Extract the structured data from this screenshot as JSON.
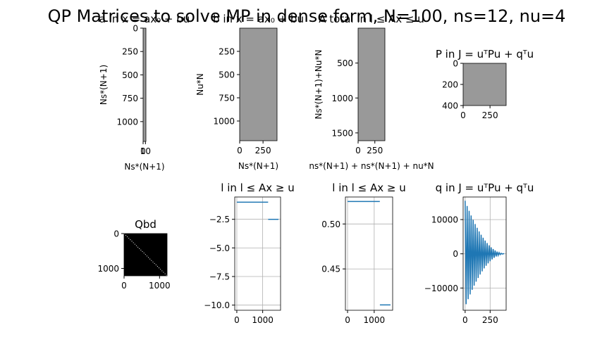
{
  "title": "QP Matrices to solve MP in dense form, N=100, ns=12, nu=4",
  "chart_data": [
    {
      "type": "image",
      "title": "a in x = ax₀ + bu",
      "xlabel": "Ns*(N+1)",
      "ylabel": "Ns*(N+1)",
      "color": "#999999",
      "xlim": [
        0,
        12
      ],
      "ylim": [
        1212,
        0
      ],
      "xticks": [
        0,
        10
      ],
      "yticks": [
        0,
        250,
        500,
        750,
        1000
      ]
    },
    {
      "type": "image",
      "title": "b in x = ax₀ + bu",
      "xlabel": "Ns*(N+1)",
      "ylabel": "Nu*N",
      "color": "#999999",
      "xlim": [
        0,
        400
      ],
      "ylim": [
        1212,
        0
      ],
      "xticks": [
        0,
        250
      ],
      "yticks": [
        250,
        500,
        750,
        1000
      ]
    },
    {
      "type": "image",
      "title": "A total in l ≤ Ax ≤ u",
      "xlabel": "ns*(N+1) + ns*(N+1) + nu*N",
      "ylabel": "Ns*(N+1)+Nu*N",
      "color": "#999999",
      "xlim": [
        0,
        400
      ],
      "ylim": [
        1612,
        0
      ],
      "xticks": [
        0,
        250
      ],
      "yticks": [
        500,
        1000,
        1500
      ]
    },
    {
      "type": "image",
      "title": "P in J = uᵀPu + qᵀu",
      "color": "#999999",
      "xlim": [
        0,
        400
      ],
      "ylim": [
        400,
        0
      ],
      "xticks": [
        0,
        250
      ],
      "yticks": [
        0,
        200,
        400
      ]
    },
    {
      "type": "image",
      "title": "Qbd",
      "color": "#000000",
      "diagonal_color": "#ffffff",
      "xlim": [
        0,
        1212
      ],
      "ylim": [
        1212,
        0
      ],
      "xticks": [
        0,
        1000
      ],
      "yticks": [
        0,
        1000
      ]
    },
    {
      "type": "line",
      "title": "l in  l ≤ Ax ≥ u",
      "color": "#1f77b4",
      "grid": true,
      "x": [
        0,
        1211,
        1212,
        1213,
        1611
      ],
      "values": [
        -1,
        -1,
        null,
        -2.5,
        -2.5
      ],
      "xlim": [
        -80,
        1692
      ],
      "ylim": [
        -10.45,
        -0.55
      ],
      "xticks": [
        0,
        1000
      ],
      "yticks": [
        {
          "value": -2.5,
          "label": "−2.5"
        },
        {
          "value": -5,
          "label": "−5.0"
        },
        {
          "value": -7.5,
          "label": "−7.5"
        },
        {
          "value": -10,
          "label": "−10.0"
        }
      ]
    },
    {
      "type": "line",
      "title": "l in  l ≤ Ax ≥ u",
      "color": "#1f77b4",
      "grid": true,
      "x": [
        0,
        1211,
        1212,
        1213,
        1611
      ],
      "values": [
        0.525,
        0.525,
        null,
        0.41,
        0.41
      ],
      "xlim": [
        -80,
        1692
      ],
      "ylim": [
        0.404,
        0.53
      ],
      "xticks": [
        0,
        1000
      ],
      "yticks": [
        {
          "value": 0.5,
          "label": "0.50"
        },
        {
          "value": 0.45,
          "label": "0.45"
        }
      ]
    },
    {
      "type": "line",
      "title": "q in J = uᵀPu + qᵀu",
      "color": "#1f77b4",
      "grid": true,
      "x": [
        0,
        10,
        20,
        30,
        40,
        50,
        60,
        70,
        80,
        90,
        100,
        110,
        120,
        130,
        140,
        150,
        160,
        170,
        180,
        190,
        200,
        210,
        220,
        230,
        240,
        250,
        260,
        270,
        280,
        290,
        300,
        310,
        320,
        330,
        340,
        350,
        360,
        370,
        380,
        390
      ],
      "values": [
        15500,
        -14735,
        13989,
        -13262,
        12555,
        -11867,
        11199,
        -10549,
        9920,
        -9310,
        8719,
        -8147,
        7595,
        -7062,
        6549,
        -6055,
        5580,
        -5125,
        4689,
        -4272,
        3875,
        -3497,
        3139,
        -2800,
        2480,
        -2180,
        1899,
        -1637,
        1395,
        -1172,
        969,
        -785,
        620,
        -475,
        349,
        -242,
        155,
        -87,
        39,
        -10
      ],
      "xlim": [
        -20,
        410
      ],
      "ylim": [
        -16500,
        16600
      ],
      "xticks": [
        0,
        250
      ],
      "yticks": [
        10000,
        0,
        {
          "value": -10000,
          "label": "−10000"
        }
      ]
    }
  ]
}
